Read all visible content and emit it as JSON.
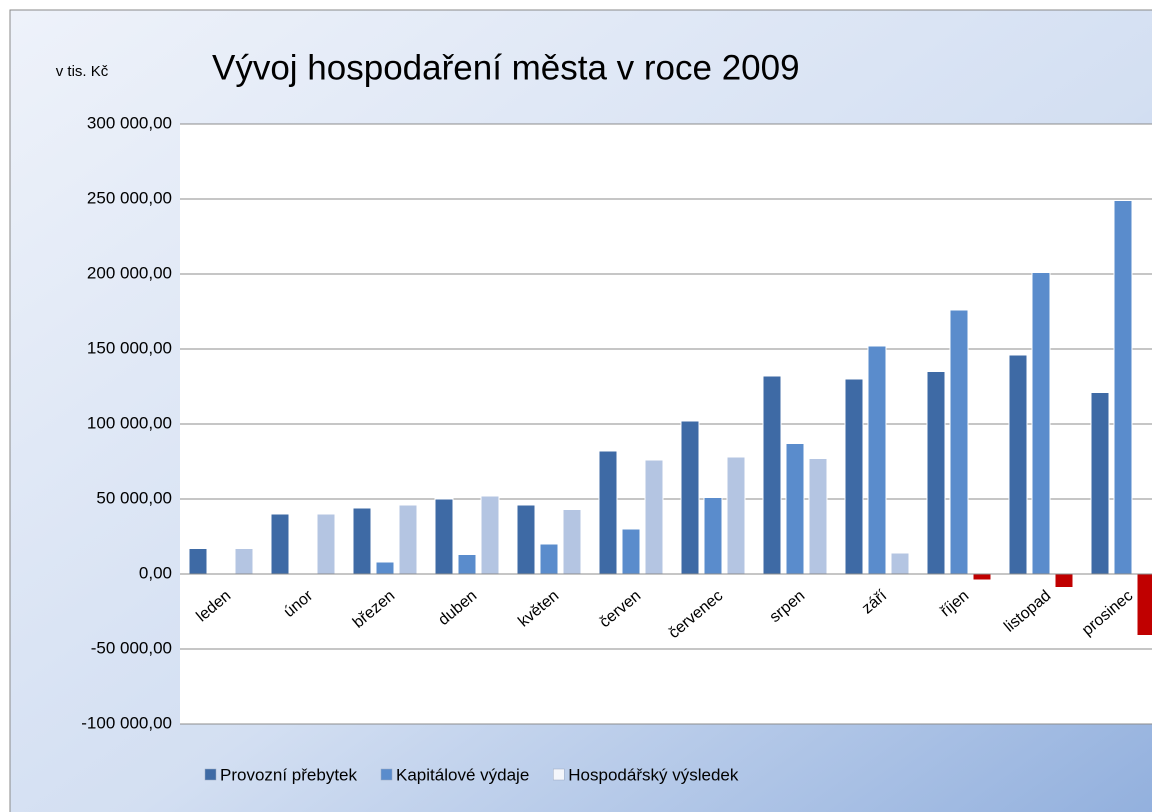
{
  "chart_data": {
    "type": "bar",
    "title": "Vývoj hospodaření města v roce 2009",
    "y_axis_label": "v tis. Kč",
    "categories": [
      "leden",
      "únor",
      "březen",
      "duben",
      "květen",
      "červen",
      "červenec",
      "srpen",
      "září",
      "říjen",
      "listopad",
      "prosinec"
    ],
    "series": [
      {
        "name": "Provozní přebytek",
        "color": "#3e6aa5",
        "values": [
          17000,
          40000,
          44000,
          50000,
          46000,
          82000,
          102000,
          132000,
          130000,
          135000,
          146000,
          121000
        ]
      },
      {
        "name": "Kapitálové výdaje",
        "color": "#5a8ccc",
        "values": [
          0,
          0,
          8000,
          13000,
          20000,
          30000,
          51000,
          87000,
          152000,
          176000,
          201000,
          249000
        ]
      },
      {
        "name": "Hospodářský výsledek",
        "color": "#b4c5e2",
        "negative_color": "#c00000",
        "values": [
          17000,
          40000,
          46000,
          52000,
          43000,
          76000,
          78000,
          77000,
          14000,
          -4000,
          -9000,
          -41000
        ]
      }
    ],
    "ylim": [
      -100000,
      300000
    ],
    "yticks": [
      {
        "value": -100000,
        "label": "-100 000,00"
      },
      {
        "value": -50000,
        "label": "-50 000,00"
      },
      {
        "value": 0,
        "label": "0,00"
      },
      {
        "value": 50000,
        "label": "50 000,00"
      },
      {
        "value": 100000,
        "label": "100 000,00"
      },
      {
        "value": 150000,
        "label": "150 000,00"
      },
      {
        "value": 200000,
        "label": "200 000,00"
      },
      {
        "value": 250000,
        "label": "250 000,00"
      },
      {
        "value": 300000,
        "label": "300 000,00"
      }
    ],
    "grid": true,
    "legend": "bottom"
  }
}
